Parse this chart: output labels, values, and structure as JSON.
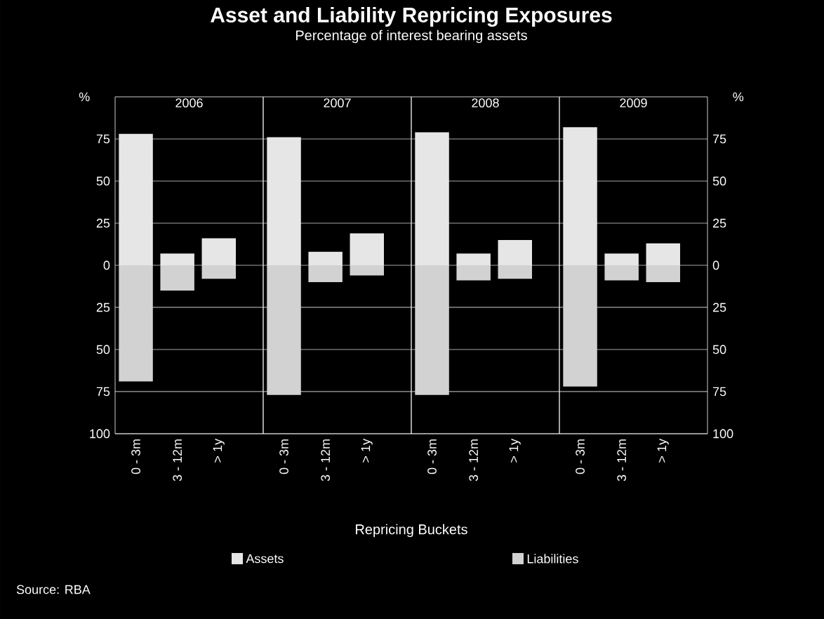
{
  "chart_data": [
    {
      "type": "other",
      "title": "Asset and Liability Repricing Exposures",
      "subtitle": "Percentage of interest bearing assets",
      "xlabel": "Repricing Buckets",
      "annotations": [
        "Source: RBA"
      ]
    },
    {
      "type": "bar",
      "title": "2006",
      "stacked": true,
      "categories": [
        "0 - 3m",
        "3 - 12m",
        "> 1y"
      ],
      "legend": "bottom",
      "grid": "y",
      "ylabel": "%",
      "ylim": [
        -100,
        100
      ],
      "yticks": [
        {
          "value": -100,
          "label": "100"
        },
        {
          "value": -75,
          "label": "75"
        },
        {
          "value": -50,
          "label": "50"
        },
        {
          "value": -25,
          "label": "25"
        },
        0,
        25,
        50,
        75
      ],
      "series": [
        {
          "name": "Assets",
          "color": "#e6e6e6",
          "values": [
            78,
            7,
            16
          ]
        },
        {
          "name": "Liabilities",
          "color": "#d2d2d2",
          "values": [
            -69,
            -15,
            -8
          ]
        }
      ]
    },
    {
      "type": "bar",
      "title": "2007",
      "stacked": true,
      "categories": [
        "0 - 3m",
        "3 - 12m",
        "> 1y"
      ],
      "grid": "y",
      "tick_labels": "x",
      "ylim": [
        -100,
        100
      ],
      "yticks": [
        {
          "value": -100,
          "label": null
        },
        {
          "value": -75,
          "label": null
        },
        {
          "value": -50,
          "label": null
        },
        {
          "value": -25,
          "label": null
        },
        {
          "value": 0,
          "label": null
        },
        {
          "value": 25,
          "label": null
        },
        {
          "value": 50,
          "label": null
        },
        {
          "value": 75,
          "label": null
        }
      ],
      "series": [
        {
          "color": "#e6e6e6",
          "values": [
            76,
            8,
            19
          ]
        },
        {
          "color": "#d2d2d2",
          "values": [
            -77,
            -10,
            -6
          ]
        }
      ]
    },
    {
      "type": "bar",
      "title": "2008",
      "stacked": true,
      "categories": [
        "0 - 3m",
        "3 - 12m",
        "> 1y"
      ],
      "grid": "y",
      "tick_labels": "x",
      "ylim": [
        -100,
        100
      ],
      "yticks": [
        {
          "value": -100,
          "label": null
        },
        {
          "value": -75,
          "label": null
        },
        {
          "value": -50,
          "label": null
        },
        {
          "value": -25,
          "label": null
        },
        {
          "value": 0,
          "label": null
        },
        {
          "value": 25,
          "label": null
        },
        {
          "value": 50,
          "label": null
        },
        {
          "value": 75,
          "label": null
        }
      ],
      "series": [
        {
          "color": "#e6e6e6",
          "values": [
            79,
            7,
            15
          ]
        },
        {
          "color": "#d2d2d2",
          "values": [
            -77,
            -9,
            -8
          ]
        }
      ]
    },
    {
      "type": "bar",
      "title": "2009",
      "stacked": true,
      "categories": [
        "0 - 3m",
        "3 - 12m",
        "> 1y"
      ],
      "grid": "y",
      "y2label": "%",
      "y2lim": [
        -100,
        100
      ],
      "y2ticks": [
        {
          "value": -100,
          "label": "100"
        },
        {
          "value": -75,
          "label": "75"
        },
        {
          "value": -50,
          "label": "50"
        },
        {
          "value": -25,
          "label": "25"
        },
        0,
        25,
        50,
        75
      ],
      "series": [
        {
          "color": "#e6e6e6",
          "axis": "y2",
          "values": [
            82,
            7,
            13
          ]
        },
        {
          "color": "#d2d2d2",
          "axis": "y2",
          "values": [
            -72,
            -9,
            -10
          ]
        }
      ]
    }
  ]
}
